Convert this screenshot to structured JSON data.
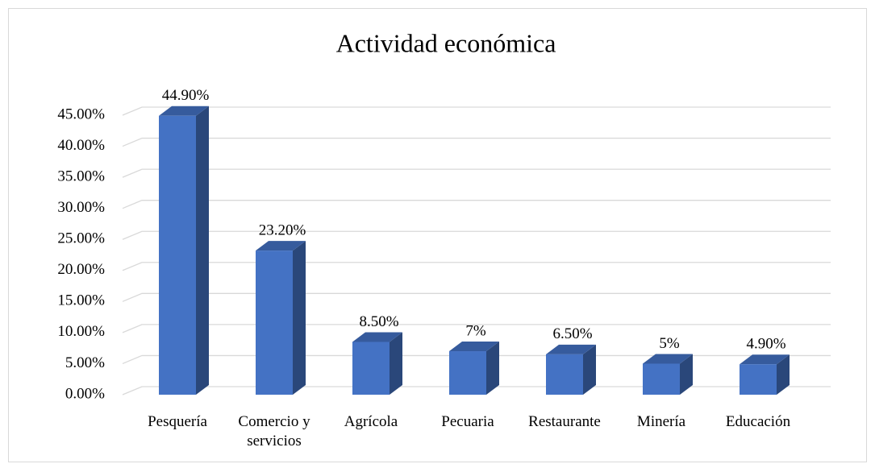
{
  "chart_data": {
    "type": "bar3d",
    "title": "Actividad económica",
    "categories": [
      "Pesquería",
      "Comercio y servicios",
      "Agrícola",
      "Pecuaria",
      "Restaurante",
      "Minería",
      "Educación"
    ],
    "values": [
      44.9,
      23.2,
      8.5,
      7,
      6.5,
      5,
      4.9
    ],
    "value_labels": [
      "44.90%",
      "23.20%",
      "8.50%",
      "7%",
      "6.50%",
      "5%",
      "4.90%"
    ],
    "color": "#4472c4",
    "ylim": [
      0,
      45
    ],
    "yticks": [
      {
        "value": 0,
        "label": "0.00%"
      },
      {
        "value": 5,
        "label": "5.00%"
      },
      {
        "value": 10,
        "label": "10.00%"
      },
      {
        "value": 15,
        "label": "15.00%"
      },
      {
        "value": 20,
        "label": "20.00%"
      },
      {
        "value": 25,
        "label": "25.00%"
      },
      {
        "value": 30,
        "label": "30.00%"
      },
      {
        "value": 35,
        "label": "35.00%"
      },
      {
        "value": 40,
        "label": "40.00%"
      },
      {
        "value": 45,
        "label": "45.00%"
      }
    ],
    "grid": true
  }
}
